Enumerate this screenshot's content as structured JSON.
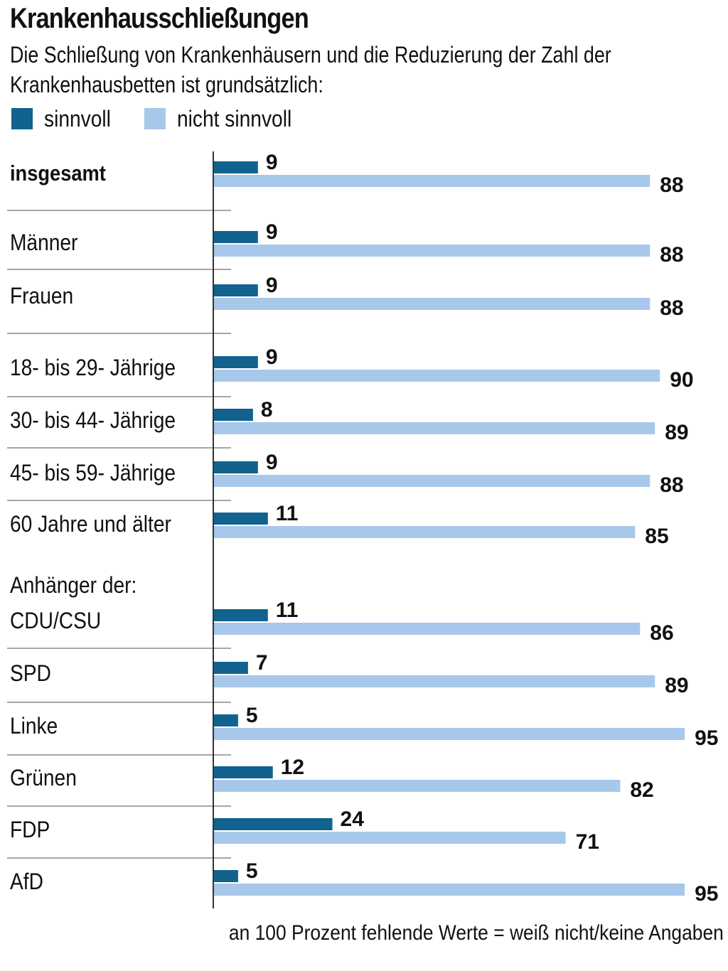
{
  "title": "Krankenhausschließungen",
  "subtitle": "Die Schließung von Krankenhäusern und die Reduzierung der Zahl der Krankenhausbetten ist grundsätzlich:",
  "footnote": "an 100 Prozent fehlende Werte = weiß nicht/keine Angaben",
  "colors": {
    "sinnvoll": "#11628f",
    "nicht_sinnvoll": "#a7c8ea",
    "separator": "#8a8a8a",
    "axis": "#333333"
  },
  "chart_data": {
    "type": "bar",
    "orientation": "horizontal",
    "unit": "Prozent",
    "xlim": [
      0,
      100
    ],
    "grid": false,
    "legend_placement": "top-left",
    "series": [
      {
        "name": "sinnvoll",
        "color": "#11628f",
        "values": [
          9,
          9,
          9,
          9,
          8,
          9,
          11,
          11,
          7,
          5,
          12,
          24,
          5
        ]
      },
      {
        "name": "nicht sinnvoll",
        "color": "#a7c8ea",
        "values": [
          88,
          88,
          88,
          90,
          89,
          88,
          85,
          86,
          89,
          95,
          82,
          71,
          95
        ]
      }
    ],
    "categories": [
      {
        "label": "insgesamt",
        "bold": true
      },
      {
        "label": "Männer"
      },
      {
        "label": "Frauen"
      },
      {
        "label": "18- bis 29- Jährige"
      },
      {
        "label": "30- bis 44- Jährige"
      },
      {
        "label": "45- bis 59- Jährige"
      },
      {
        "label": "60 Jahre und älter"
      },
      {
        "label": "CDU/CSU",
        "group_label": "Anhänger der:"
      },
      {
        "label": "SPD"
      },
      {
        "label": "Linke"
      },
      {
        "label": "Grünen"
      },
      {
        "label": "FDP"
      },
      {
        "label": "AfD"
      }
    ]
  }
}
